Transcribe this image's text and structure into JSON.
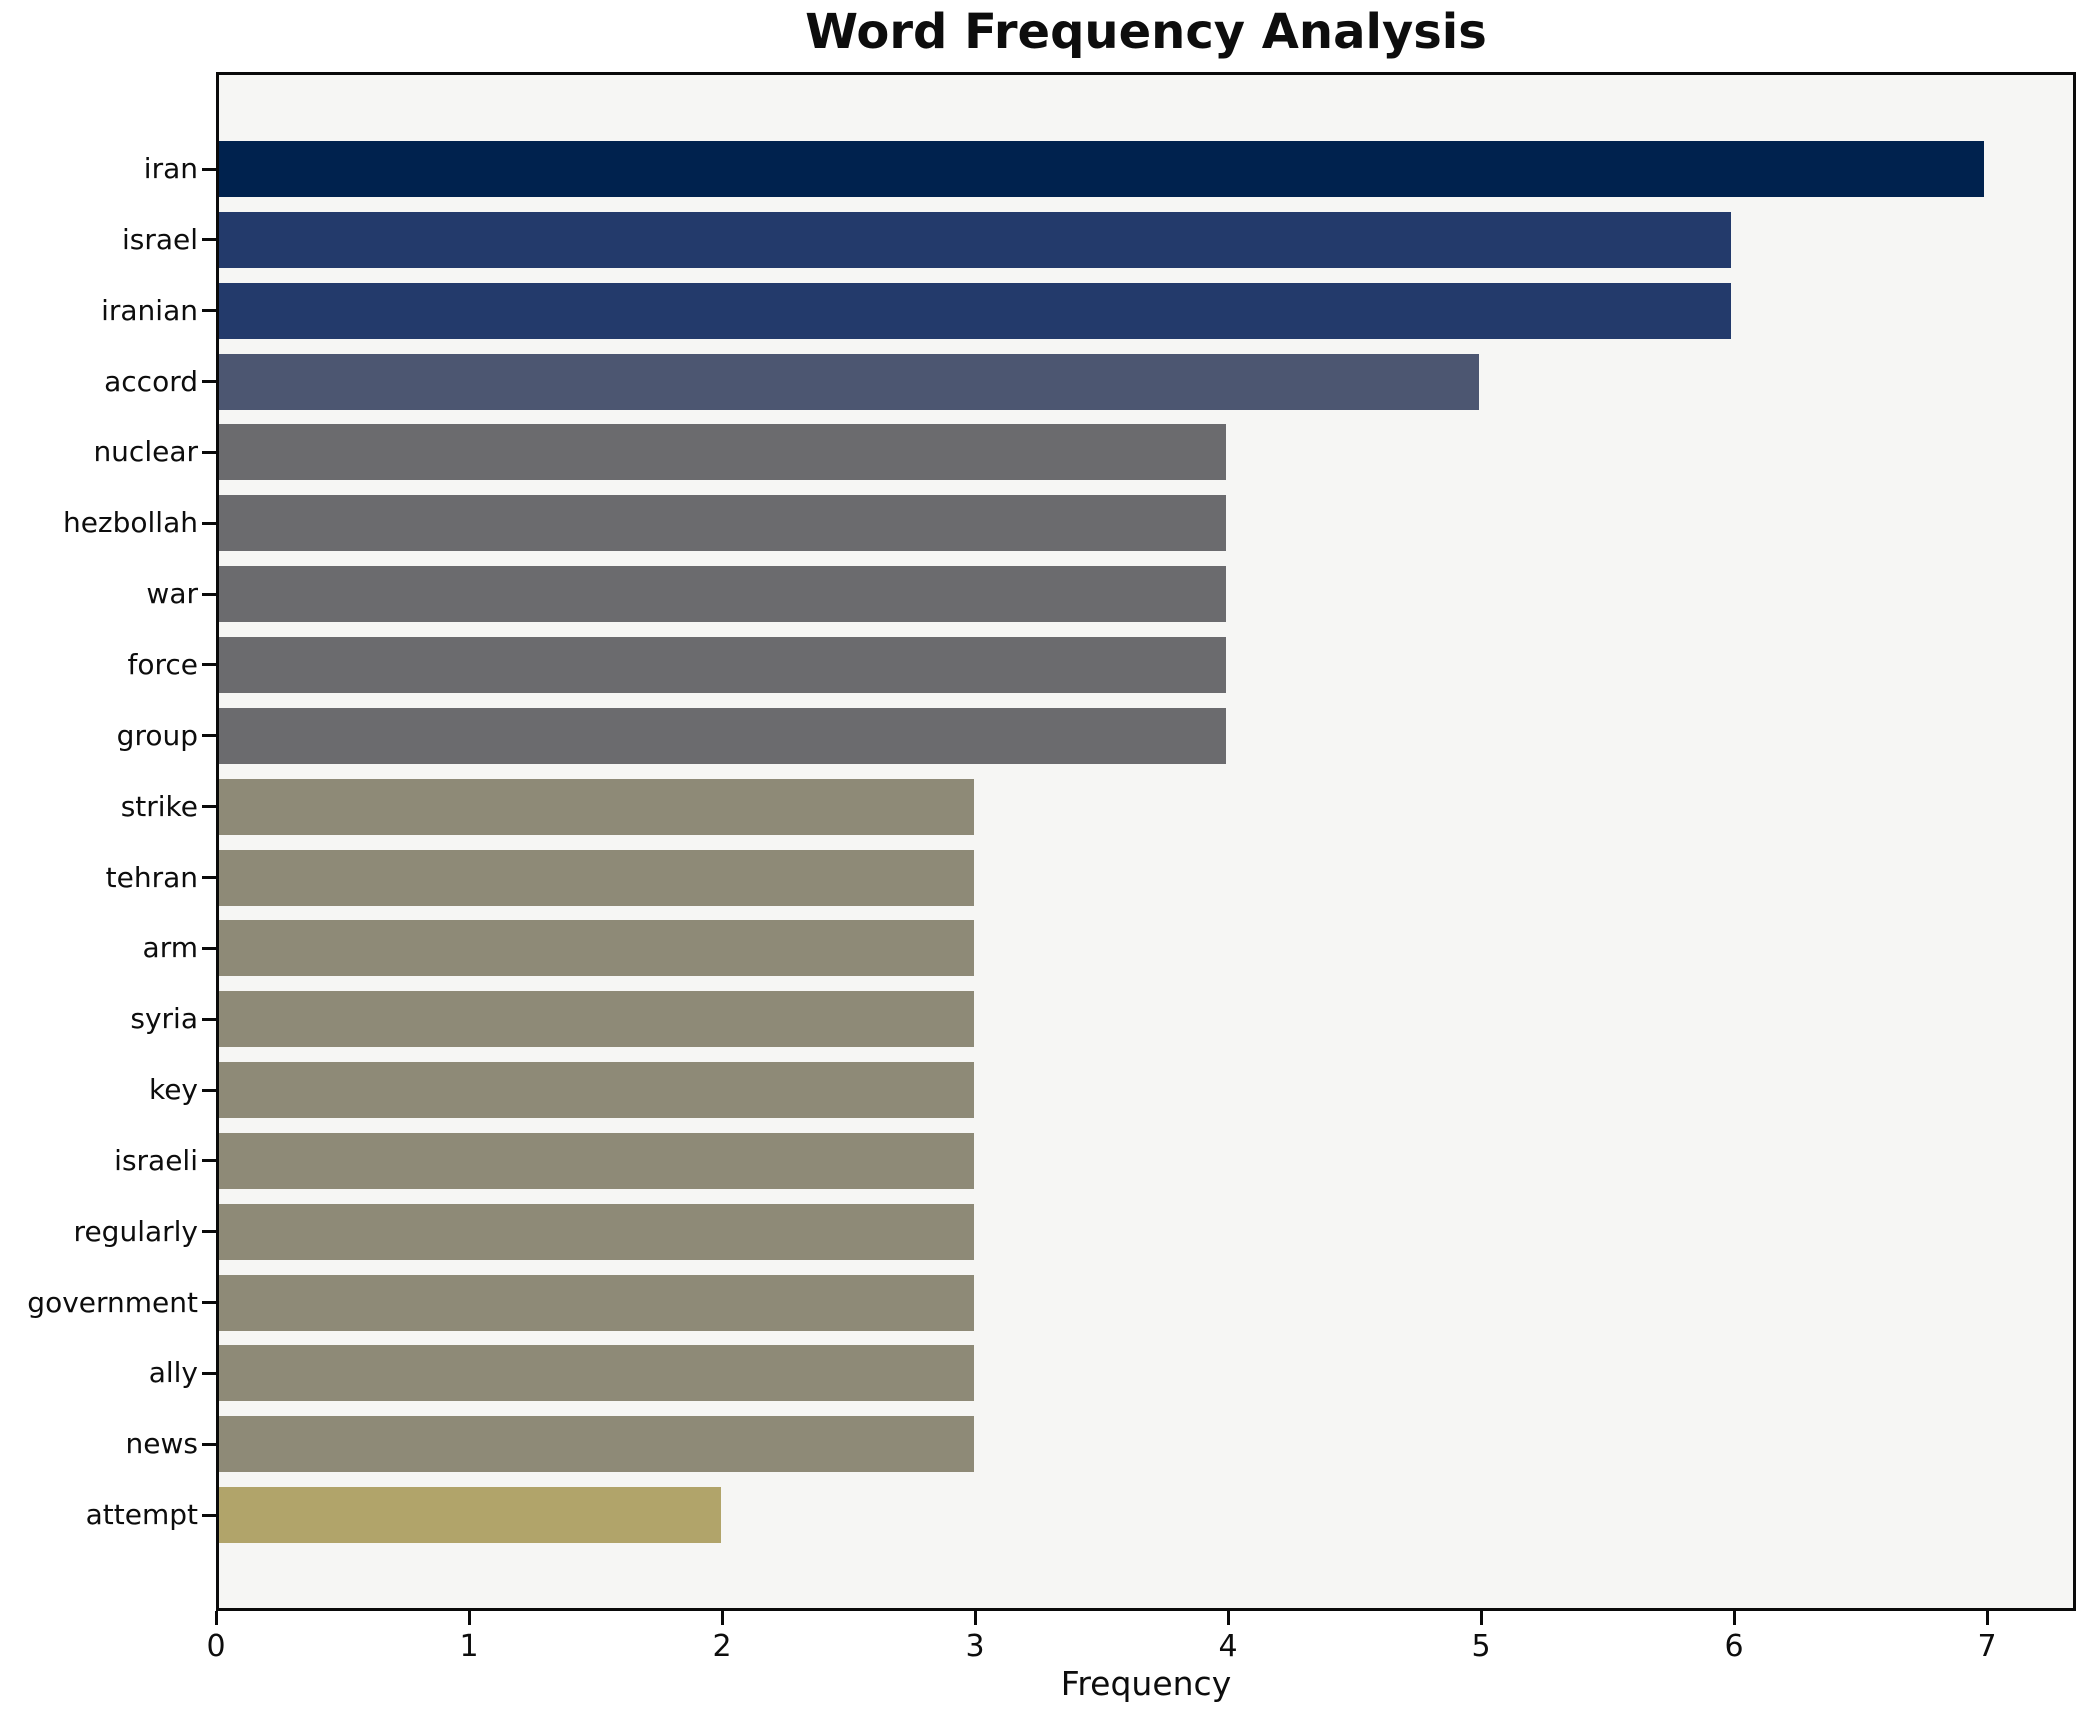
{
  "title": "Word Frequency Analysis",
  "xlabel": "Frequency",
  "chart_data": {
    "type": "bar",
    "orientation": "horizontal",
    "title": "Word Frequency Analysis",
    "xlabel": "Frequency",
    "ylabel": "",
    "grid": false,
    "legend": false,
    "xlim": [
      0,
      7.35
    ],
    "xticks": [
      0,
      1,
      2,
      3,
      4,
      5,
      6,
      7
    ],
    "categories": [
      "iran",
      "israel",
      "iranian",
      "accord",
      "nuclear",
      "hezbollah",
      "war",
      "force",
      "group",
      "strike",
      "tehran",
      "arm",
      "syria",
      "key",
      "israeli",
      "regularly",
      "government",
      "ally",
      "news",
      "attempt"
    ],
    "values": [
      7,
      6,
      6,
      5,
      4,
      4,
      4,
      4,
      4,
      3,
      3,
      3,
      3,
      3,
      3,
      3,
      3,
      3,
      3,
      2
    ],
    "colors": [
      "#00224e",
      "#233a6b",
      "#233a6b",
      "#4c5671",
      "#6b6b6e",
      "#6b6b6e",
      "#6b6b6e",
      "#6b6b6e",
      "#6b6b6e",
      "#8e8a77",
      "#8e8a77",
      "#8e8a77",
      "#8e8a77",
      "#8e8a77",
      "#8e8a77",
      "#8e8a77",
      "#8e8a77",
      "#8e8a77",
      "#8e8a77",
      "#b1a46a"
    ],
    "plot_background": "#f6f6f4",
    "figure_background": "#ffffff",
    "spine_color": "#0a0a0a"
  }
}
